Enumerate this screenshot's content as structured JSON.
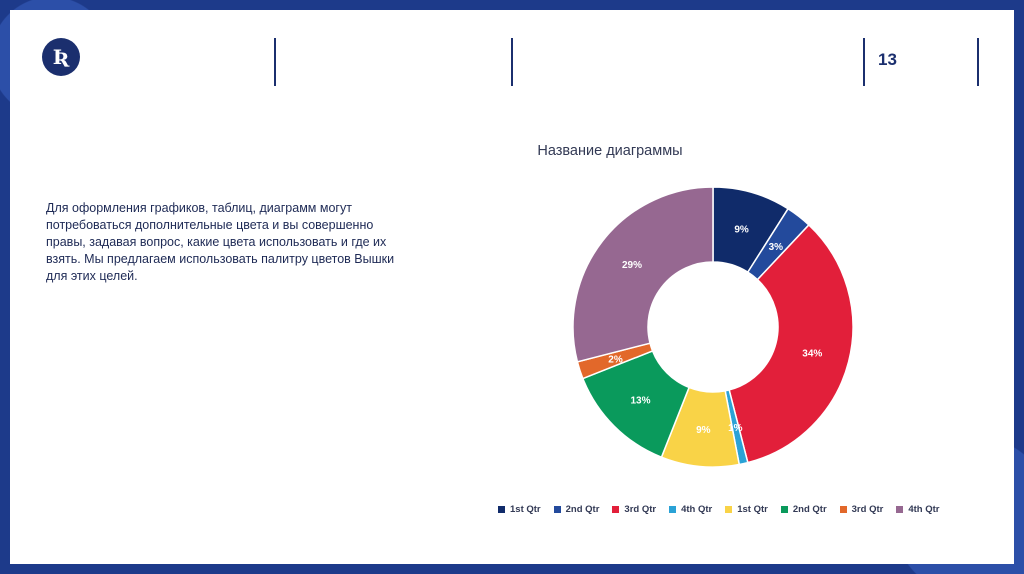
{
  "slide": {
    "page_number": "13",
    "body_text": "Для оформления графиков, таблиц, диаграмм могут потребоваться дополнительные цвета и вы совершенно правы, задавая вопрос, какие цвета использовать и где их взять. Мы предлагаем использовать палитру цветов Вышки для этих целей.",
    "logo_icon": "hse-logo-icon"
  },
  "chart_data": {
    "type": "pie",
    "title": "Название диаграммы",
    "legend_position": "bottom",
    "categories": [
      "1st Qtr",
      "2nd Qtr",
      "3rd Qtr",
      "4th Qtr",
      "1st Qtr",
      "2nd Qtr",
      "3rd Qtr",
      "4th Qtr"
    ],
    "values": [
      9,
      3,
      34,
      1,
      9,
      13,
      2,
      29
    ],
    "data_labels": [
      "9%",
      "3%",
      "34%",
      "1%",
      "9%",
      "13%",
      "2%",
      "29%"
    ],
    "colors": [
      "#102b6a",
      "#234a9c",
      "#e21f3a",
      "#2aa2d6",
      "#f9d347",
      "#0a9a5c",
      "#e2682a",
      "#966891"
    ]
  }
}
